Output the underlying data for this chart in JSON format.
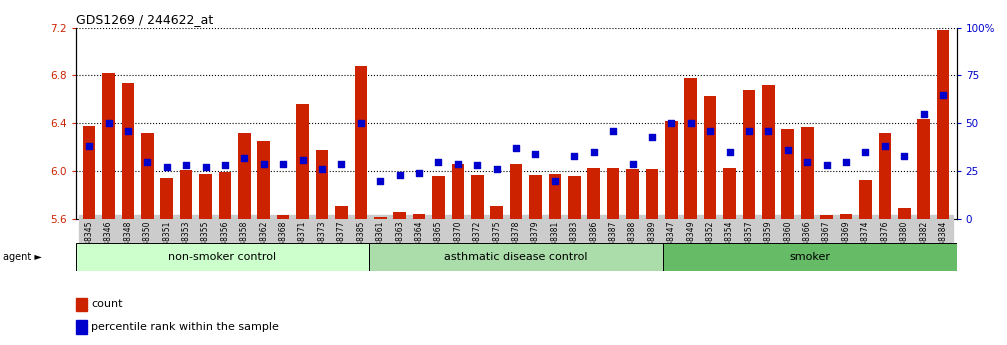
{
  "title": "GDS1269 / 244622_at",
  "ylim_left": [
    5.6,
    7.2
  ],
  "ylim_right": [
    0,
    100
  ],
  "yticks_left": [
    5.6,
    6.0,
    6.4,
    6.8,
    7.2
  ],
  "yticks_right": [
    0,
    25,
    50,
    75,
    100
  ],
  "bar_color": "#cc2200",
  "dot_color": "#0000cc",
  "samples": [
    "GSM38345",
    "GSM38346",
    "GSM38348",
    "GSM38350",
    "GSM38351",
    "GSM38353",
    "GSM38355",
    "GSM38356",
    "GSM38358",
    "GSM38362",
    "GSM38368",
    "GSM38371",
    "GSM38373",
    "GSM38377",
    "GSM38385",
    "GSM38361",
    "GSM38363",
    "GSM38364",
    "GSM38365",
    "GSM38370",
    "GSM38372",
    "GSM38375",
    "GSM38378",
    "GSM38379",
    "GSM38381",
    "GSM38383",
    "GSM38386",
    "GSM38387",
    "GSM38388",
    "GSM38389",
    "GSM38347",
    "GSM38349",
    "GSM38352",
    "GSM38354",
    "GSM38357",
    "GSM38359",
    "GSM38360",
    "GSM38366",
    "GSM38367",
    "GSM38369",
    "GSM38374",
    "GSM38376",
    "GSM38380",
    "GSM38382",
    "GSM38384"
  ],
  "bar_values": [
    6.38,
    6.82,
    6.74,
    6.32,
    5.94,
    6.01,
    5.98,
    5.99,
    6.32,
    6.25,
    5.63,
    6.56,
    6.18,
    5.71,
    6.88,
    5.62,
    5.66,
    5.64,
    5.96,
    6.06,
    5.97,
    5.71,
    6.06,
    5.97,
    5.98,
    5.96,
    6.03,
    6.03,
    6.02,
    6.02,
    6.42,
    6.78,
    6.63,
    6.03,
    6.68,
    6.72,
    6.35,
    6.37,
    5.63,
    5.64,
    5.93,
    6.32,
    5.69,
    6.44,
    7.18
  ],
  "dot_values_pct": [
    38,
    50,
    46,
    30,
    27,
    28,
    27,
    28,
    32,
    29,
    29,
    31,
    26,
    29,
    50,
    20,
    23,
    24,
    30,
    29,
    28,
    26,
    37,
    34,
    20,
    33,
    35,
    46,
    29,
    43,
    50,
    50,
    46,
    35,
    46,
    46,
    36,
    30,
    28,
    30,
    35,
    38,
    33,
    55,
    65
  ],
  "groups": [
    {
      "label": "non-smoker control",
      "color": "#ddffdd",
      "start": 0,
      "end": 15
    },
    {
      "label": "asthmatic disease control",
      "color": "#aaddaa",
      "start": 15,
      "end": 30
    },
    {
      "label": "smoker",
      "color": "#66bb66",
      "start": 30,
      "end": 45
    }
  ],
  "legend_count_label": "count",
  "legend_pct_label": "percentile rank within the sample",
  "agent_label": "agent"
}
